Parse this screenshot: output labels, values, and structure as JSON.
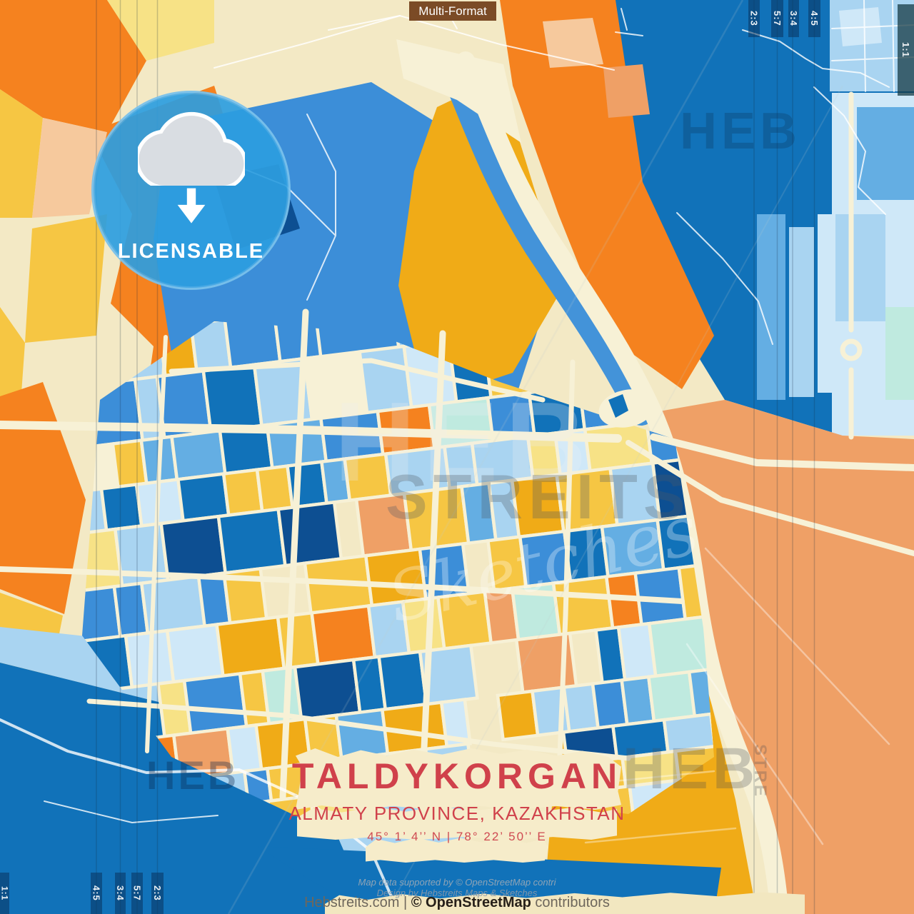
{
  "format_tag": {
    "label": "Multi-Format"
  },
  "badge": {
    "label": "LICENSABLE",
    "icon": "cloud-download-icon"
  },
  "crop_markers": {
    "top_right": [
      "2:3",
      "5:7",
      "3:4",
      "4:5"
    ],
    "right_edge": "1:1",
    "left_edge": "1:1",
    "bottom_left": [
      "4:5",
      "3:4",
      "5:7",
      "2:3"
    ]
  },
  "title_block": {
    "title": "TALDYKORGAN",
    "subtitle": "ALMATY PROVINCE, KAZAKHSTAN",
    "coordinates": "45° 1’ 4’’ N | 78° 22’ 50’’ E"
  },
  "credits": {
    "map_data_line": "Map data supported by © OpenStreetMap contri",
    "design_line": "Design by Hebstreits Maps & Sketches"
  },
  "footer": {
    "prefix": "Hebstreits.com | ",
    "osm": "© OpenStreetMap",
    "suffix": " contributors"
  },
  "watermarks": {
    "top_right": "HEB",
    "center_big": "HEB",
    "center_mid": "STREITS",
    "center_script": "Sketches",
    "bottom_left": "HEB",
    "bottom_right": "HEB",
    "bottom_right_vertical": "STRE"
  },
  "colors": {
    "title_red": "#d0414b",
    "badge_blue": "#2d9ee3",
    "tag_brown": "#7b4b26",
    "map_orange": "#f5821f",
    "map_gold": "#f0ab17",
    "map_yellow": "#f6c643",
    "map_deep_blue": "#1172b9",
    "map_mid_blue": "#3c8ed8",
    "map_light_blue": "#a9d4f1",
    "map_salmon": "#efa066",
    "map_cream": "#f3e9c5",
    "street_cream": "#f7f1d6",
    "block_palette": [
      {
        "hex": "#3c8ed8",
        "w": 14
      },
      {
        "hex": "#64aee3",
        "w": 10
      },
      {
        "hex": "#1172b9",
        "w": 12
      },
      {
        "hex": "#0d4f92",
        "w": 6
      },
      {
        "hex": "#a9d4f1",
        "w": 16
      },
      {
        "hex": "#cfe8f8",
        "w": 7
      },
      {
        "hex": "#bfeadf",
        "w": 6
      },
      {
        "hex": "#f6c643",
        "w": 10
      },
      {
        "hex": "#f0ab17",
        "w": 7
      },
      {
        "hex": "#f7e286",
        "w": 6
      },
      {
        "hex": "#f5821f",
        "w": 6
      },
      {
        "hex": "#efa066",
        "w": 5
      },
      {
        "hex": "#f7f1d6",
        "w": 4
      }
    ]
  }
}
